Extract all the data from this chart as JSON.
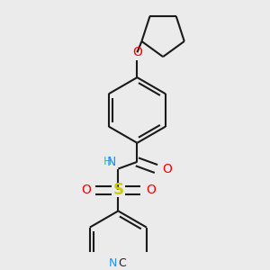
{
  "background_color": "#ebebeb",
  "bond_color": "#1a1a1a",
  "atom_colors": {
    "O": "#ff0000",
    "N": "#1e90ff",
    "S": "#cccc00",
    "C": "#1e1e1e",
    "H": "#5aabab"
  },
  "lw": 1.5,
  "dbo": 0.055,
  "figsize": [
    3.0,
    3.0
  ],
  "dpi": 100
}
